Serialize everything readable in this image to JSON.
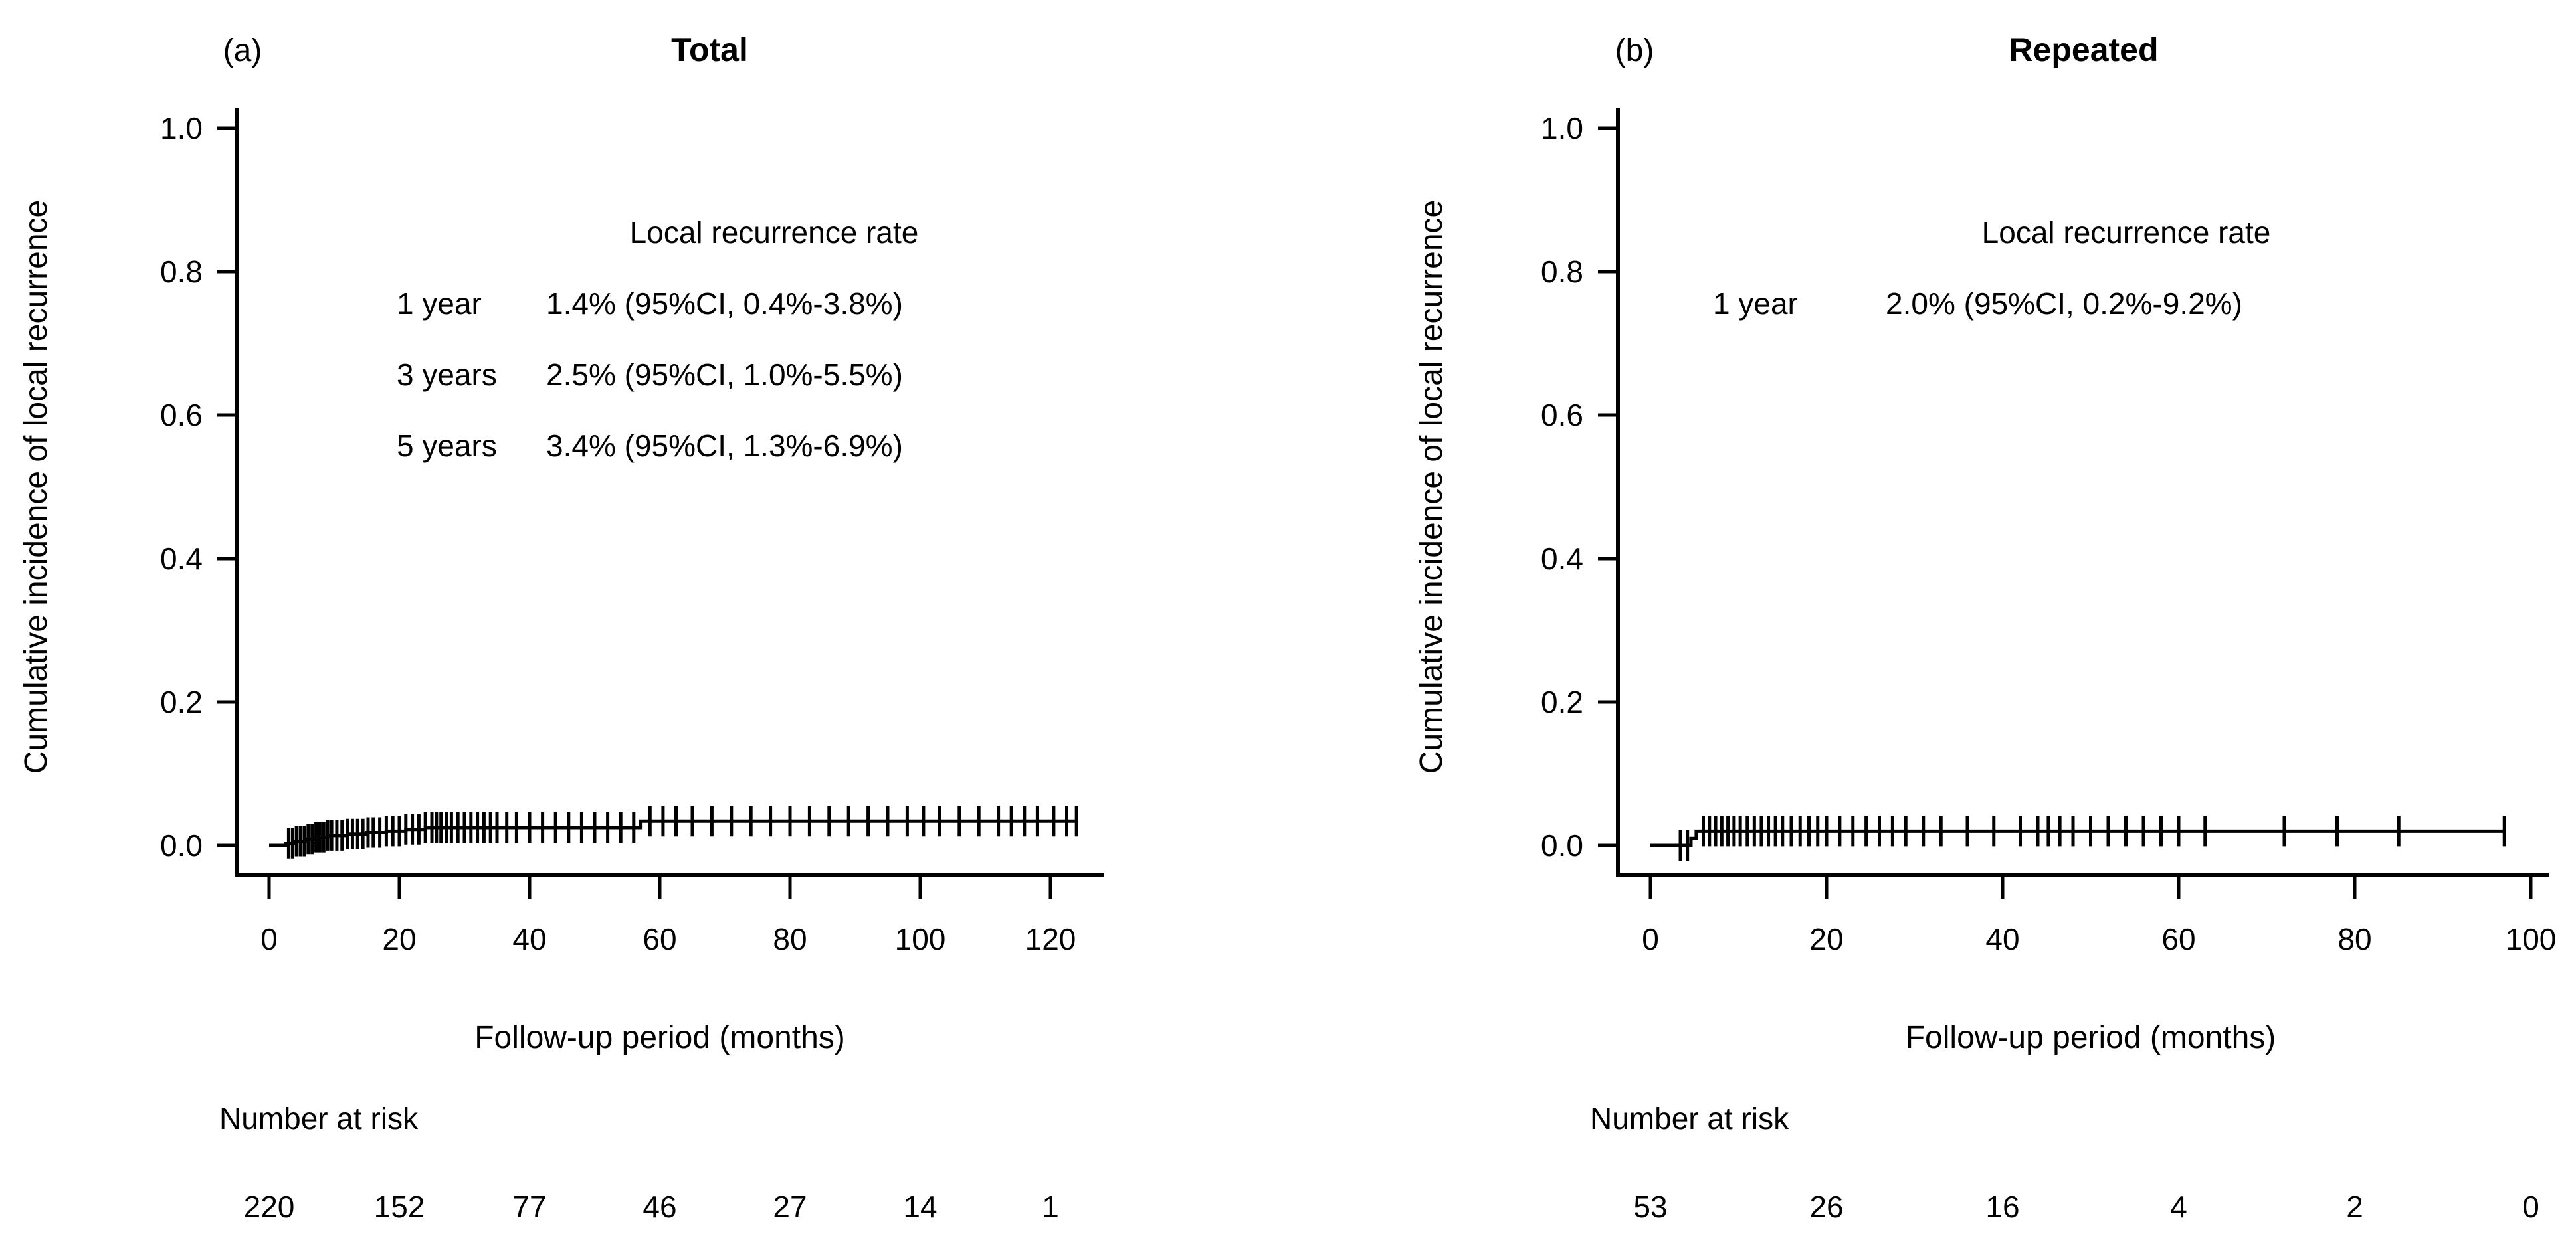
{
  "colors": {
    "ink": "#000000",
    "background": "#ffffff"
  },
  "chart_data": [
    {
      "type": "line",
      "subtype": "cumulative-incidence-step-curve",
      "panel_label": "(a)",
      "title": "Total",
      "xlabel": "Follow-up period (months)",
      "ylabel": "Cumulative incidence of local recurrence",
      "xlim": [
        0,
        127
      ],
      "ylim": [
        0,
        1.0
      ],
      "grid": false,
      "legend": "none",
      "x_ticks": [
        0,
        20,
        40,
        60,
        80,
        100,
        120
      ],
      "x_tick_labels": [
        "0",
        "20",
        "40",
        "60",
        "80",
        "100",
        "120"
      ],
      "y_ticks": [
        1.0,
        0.8,
        0.6,
        0.4,
        0.2,
        0.0
      ],
      "y_tick_labels": [
        "1.0",
        "0.8",
        "0.6",
        "0.4",
        "0.2",
        "0.0"
      ],
      "annotation": {
        "header": "Local recurrence rate",
        "rows": [
          {
            "time": "1 year",
            "rate": "1.4% (95%CI, 0.4%-3.8%)"
          },
          {
            "time": "3 years",
            "rate": "2.5% (95%CI, 1.0%-5.5%)"
          },
          {
            "time": "5 years",
            "rate": "3.4% (95%CI, 1.3%-6.9%)"
          }
        ]
      },
      "series": [
        {
          "name": "Cumulative incidence of local recurrence",
          "steps": [
            [
              0,
              0
            ],
            [
              2.5,
              0.003
            ],
            [
              4,
              0.006
            ],
            [
              5.5,
              0.009
            ],
            [
              7,
              0.0115
            ],
            [
              9,
              0.014
            ],
            [
              12,
              0.016
            ],
            [
              15,
              0.018
            ],
            [
              18,
              0.02
            ],
            [
              21,
              0.0225
            ],
            [
              24,
              0.025
            ],
            [
              57,
              0.034
            ]
          ],
          "end_time": 124
        }
      ],
      "censor_times": [
        3,
        3.6,
        4.2,
        4.8,
        5.4,
        6,
        6.6,
        7.2,
        7.8,
        8.4,
        9,
        9.6,
        10.4,
        11.2,
        12,
        12.8,
        13.6,
        14.4,
        15.2,
        16,
        17,
        18,
        19,
        20,
        21,
        22,
        23,
        24,
        25,
        25.7,
        26.4,
        27.2,
        28,
        29,
        30,
        31,
        32,
        33,
        34,
        35,
        36.5,
        38,
        40,
        42,
        44,
        46,
        48,
        50,
        52,
        54,
        56,
        58.5,
        60.5,
        62.5,
        65,
        68,
        71,
        74,
        77,
        80,
        83,
        86,
        89,
        92,
        95,
        98,
        100.5,
        103,
        106,
        109,
        112,
        114,
        116,
        118,
        120.5,
        122.5,
        124
      ],
      "number_at_risk": {
        "label": "Number at risk",
        "times": [
          0,
          20,
          40,
          60,
          80,
          100,
          120
        ],
        "values": [
          "220",
          "152",
          "77",
          "46",
          "27",
          "14",
          "1"
        ]
      }
    },
    {
      "type": "line",
      "subtype": "cumulative-incidence-step-curve",
      "panel_label": "(b)",
      "title": "Repeated",
      "xlabel": "Follow-up period (months)",
      "ylabel": "Cumulative incidence of local recurrence",
      "xlim": [
        0,
        102
      ],
      "ylim": [
        0,
        1.0
      ],
      "grid": false,
      "legend": "none",
      "x_ticks": [
        0,
        20,
        40,
        60,
        80,
        100
      ],
      "x_tick_labels": [
        "0",
        "20",
        "40",
        "60",
        "80",
        "100"
      ],
      "y_ticks": [
        1.0,
        0.8,
        0.6,
        0.4,
        0.2,
        0.0
      ],
      "y_tick_labels": [
        "1.0",
        "0.8",
        "0.6",
        "0.4",
        "0.2",
        "0.0"
      ],
      "annotation": {
        "header": "Local recurrence rate",
        "rows": [
          {
            "time": "1 year",
            "rate": "2.0% (95%CI, 0.2%-9.2%)"
          }
        ]
      },
      "series": [
        {
          "name": "Cumulative incidence of local recurrence",
          "steps": [
            [
              0,
              0
            ],
            [
              4.6,
              0.01
            ],
            [
              5.2,
              0.02
            ]
          ],
          "end_time": 97
        }
      ],
      "censor_times": [
        3.4,
        4.2,
        6,
        6.7,
        7.4,
        8.1,
        8.8,
        9.5,
        10.2,
        11,
        11.8,
        12.6,
        13.4,
        14.2,
        15,
        16,
        17,
        18,
        19,
        20,
        21.5,
        23,
        24.5,
        26,
        27.5,
        29,
        31,
        33,
        36,
        39,
        42,
        44,
        45.2,
        46.5,
        48,
        50,
        52,
        54,
        56,
        58,
        60,
        63,
        72,
        78,
        85,
        97
      ],
      "number_at_risk": {
        "label": "Number at risk",
        "times": [
          0,
          20,
          40,
          60,
          80,
          100
        ],
        "values": [
          "53",
          "26",
          "16",
          "4",
          "2",
          "0"
        ]
      }
    }
  ]
}
